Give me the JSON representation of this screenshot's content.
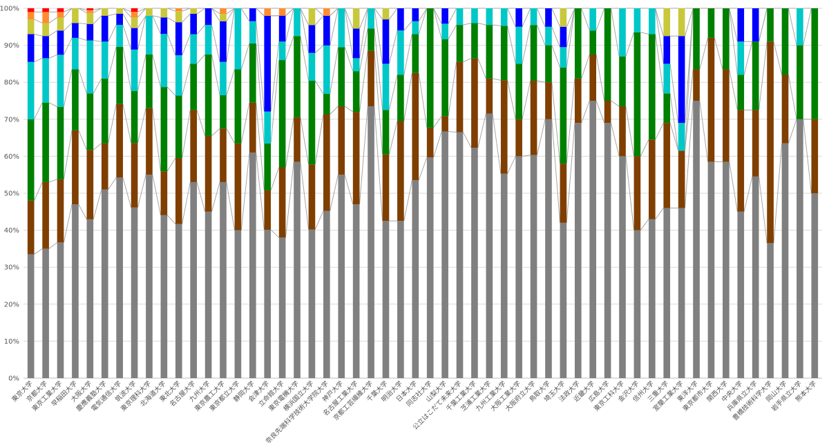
{
  "chart_data": {
    "type": "bar",
    "stacked": "percent",
    "yticks": [
      "0%",
      "10%",
      "20%",
      "30%",
      "40%",
      "50%",
      "60%",
      "70%",
      "80%",
      "90%",
      "100%"
    ],
    "ylim": [
      0,
      100
    ],
    "grid": "horizontal",
    "legend": "none",
    "categories": [
      "東京大学",
      "京都大学",
      "東京工業大学",
      "早稲田大学",
      "大阪大学",
      "慶應義塾大学",
      "電気通信大学",
      "筑波大学",
      "東京理科大学",
      "北海道大学",
      "東北大学",
      "名古屋大学",
      "九州大学",
      "東京農工大学",
      "東京都立大学",
      "静岡大学",
      "会津大学",
      "立命館大学",
      "東京電機大学",
      "横浜国立大学",
      "奈良先端科学技術大学院大学",
      "神戸大学",
      "名古屋工業大学",
      "京都工芸繊維大学",
      "千葉大学",
      "明治大学",
      "日本大学",
      "同志社大学",
      "山梨大学",
      "公立はこだて未来大学",
      "千葉工業大学",
      "芝浦工業大学",
      "九州工業大学",
      "大阪工業大学",
      "大阪府立大学",
      "鳥取大学",
      "埼玉大学",
      "法政大学",
      "近畿大学",
      "広島大学",
      "東京工科大学",
      "金沢大学",
      "信州大学",
      "三重大学",
      "室蘭工業大学",
      "東洋大学",
      "東京都市大学",
      "関西大学",
      "中央大学",
      "兵庫県立大学",
      "豊橋技術科学大学",
      "岡山大学",
      "岩手県立大学",
      "熊本大学"
    ],
    "colors": [
      "#808080",
      "#7f3f00",
      "#008000",
      "#00c8c8",
      "#0000ff",
      "#c8c83c",
      "#ff8c32",
      "#ff0000"
    ],
    "series": [
      {
        "values": [
          33.5,
          35,
          36.5,
          47,
          43.5,
          51,
          54.5,
          47.5,
          55,
          44.5,
          42,
          53,
          45,
          53,
          40,
          61,
          39.5,
          38,
          58.5,
          40,
          45,
          55,
          47,
          73.5,
          42.5,
          42.5,
          53.5,
          55.5,
          64,
          66.5,
          62,
          71.5,
          52.5,
          60,
          60,
          70,
          42,
          69,
          75,
          69,
          60,
          40,
          43,
          46,
          46,
          75,
          58.5,
          58.5,
          45,
          54.5,
          36.5,
          63.5,
          70,
          50
        ]
      },
      {
        "values": [
          14.5,
          18,
          17,
          20,
          19,
          12.5,
          20,
          18,
          18,
          12,
          18,
          19.5,
          20.5,
          14.5,
          23.5,
          13.5,
          10.5,
          19,
          12,
          17.5,
          26,
          18.5,
          25,
          15,
          18,
          27,
          29,
          7.5,
          4,
          19,
          24,
          9.5,
          24,
          10,
          20,
          10,
          16,
          12,
          12.5,
          6,
          13.5,
          20,
          21.5,
          23,
          15.5,
          8.5,
          33.5,
          25,
          27.5,
          18,
          54.5,
          18.5,
          0,
          20
        ]
      },
      {
        "values": [
          22,
          21.5,
          19.5,
          16.5,
          15.5,
          17.5,
          15.5,
          14.5,
          14.5,
          23,
          17,
          12.5,
          22,
          9,
          20,
          16,
          12.5,
          29,
          22,
          22.5,
          5.5,
          16,
          11,
          6,
          12,
          12.5,
          10.5,
          30,
          20,
          10,
          9.5,
          14.5,
          14,
          15,
          15,
          10,
          26,
          19,
          6.5,
          25,
          13.5,
          33.5,
          28.5,
          8,
          0,
          16.5,
          8,
          16.5,
          9.5,
          18.5,
          9,
          18,
          20,
          30
        ]
      },
      {
        "values": [
          15.5,
          12,
          14,
          8.5,
          14.5,
          10,
          6,
          11.5,
          10.5,
          14.5,
          11,
          8,
          8,
          9,
          16.5,
          6,
          8.5,
          5,
          7.5,
          7.5,
          13,
          10.5,
          3.5,
          5.5,
          12.5,
          12,
          3.5,
          0,
          4,
          4.5,
          4,
          4.5,
          4.5,
          10,
          4.5,
          5,
          5.5,
          0,
          6,
          0,
          13,
          6.5,
          7,
          8,
          7.5,
          0,
          0,
          0,
          9,
          0,
          0,
          0,
          10,
          0
        ]
      },
      {
        "values": [
          7.5,
          6,
          6.5,
          4,
          4.5,
          7,
          3,
          6,
          0,
          4.5,
          9,
          5.5,
          4.5,
          11,
          0,
          3.5,
          25.5,
          7,
          0,
          7.5,
          8,
          0,
          8,
          0,
          12,
          6,
          3.5,
          0,
          4,
          0,
          0,
          0,
          0,
          5,
          0,
          5,
          5.5,
          0,
          0,
          0,
          0,
          0,
          0,
          7.5,
          23.5,
          0,
          0,
          0,
          9,
          9,
          0,
          0,
          0,
          0
        ]
      },
      {
        "values": [
          4,
          3.5,
          3.5,
          4,
          3,
          2,
          1.5,
          3,
          2,
          2.5,
          3,
          1.5,
          0,
          2,
          0,
          0,
          0,
          0,
          0,
          4.5,
          0,
          0,
          5.5,
          0,
          3,
          0,
          0,
          0,
          0,
          0,
          0,
          0,
          0,
          0,
          0,
          0,
          5,
          0,
          0,
          0,
          0,
          0,
          0,
          7.5,
          7.5,
          0,
          0,
          0,
          0,
          0,
          0,
          0,
          0,
          0
        ]
      },
      {
        "values": [
          2,
          3,
          1.5,
          0,
          0.8,
          0,
          0,
          1.5,
          0,
          0,
          0.8,
          0,
          0,
          1.5,
          0,
          0,
          2,
          2,
          0,
          0,
          2,
          0,
          0,
          0,
          0,
          0,
          0,
          0,
          0,
          0,
          0,
          0,
          0,
          0,
          0,
          0,
          0,
          0,
          0,
          0,
          0,
          0,
          0,
          0,
          0,
          0,
          0,
          0,
          0,
          0,
          0,
          0,
          0,
          0
        ]
      },
      {
        "values": [
          1,
          1,
          1,
          0,
          0.5,
          0,
          0,
          1,
          0,
          0,
          0,
          0,
          0,
          0,
          0,
          0,
          0,
          0,
          0,
          0,
          0,
          0,
          0,
          0,
          0,
          0,
          0,
          0,
          0,
          0,
          0,
          0,
          0,
          0,
          0,
          0,
          0,
          0,
          0,
          0,
          0,
          0,
          0,
          0,
          0,
          0,
          0,
          0,
          0,
          0,
          0,
          0,
          0,
          0
        ]
      }
    ]
  }
}
